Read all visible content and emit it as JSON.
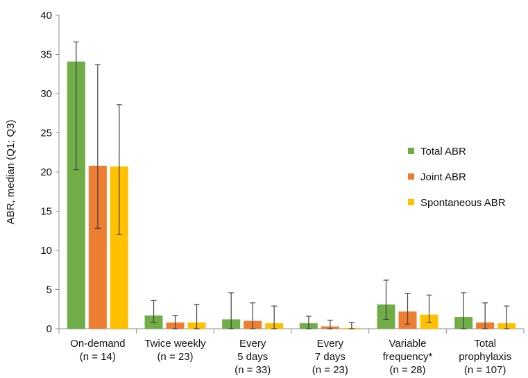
{
  "chart_data": {
    "type": "bar",
    "ylabel": "ABR, median (Q1; Q3)",
    "ylim": [
      0,
      40
    ],
    "yticks": [
      0,
      5,
      10,
      15,
      20,
      25,
      30,
      35,
      40
    ],
    "categories": [
      [
        "On-demand",
        "(n = 14)"
      ],
      [
        "Twice weekly",
        "(n = 23)"
      ],
      [
        "Every",
        "5 days",
        "(n = 33)"
      ],
      [
        "Every",
        "7 days",
        "(n = 23)"
      ],
      [
        "Variable",
        "frequency*",
        "(n = 28)"
      ],
      [
        "Total",
        "prophylaxis",
        "(n = 107)"
      ]
    ],
    "series": [
      {
        "name": "Total ABR",
        "color": "#70ad47",
        "values": [
          34.1,
          1.7,
          1.2,
          0.7,
          3.1,
          1.5
        ],
        "q1": [
          20.3,
          0.8,
          0.0,
          0.0,
          1.2,
          0.0
        ],
        "q3": [
          36.6,
          3.6,
          4.6,
          1.6,
          6.2,
          4.6
        ]
      },
      {
        "name": "Joint ABR",
        "color": "#ed7d31",
        "values": [
          20.8,
          0.8,
          1.0,
          0.3,
          2.2,
          0.8
        ],
        "q1": [
          12.8,
          0.0,
          0.0,
          0.0,
          0.6,
          0.0
        ],
        "q3": [
          33.7,
          1.7,
          3.3,
          1.1,
          4.5,
          3.3
        ]
      },
      {
        "name": "Spontaneous ABR",
        "color": "#ffc000",
        "values": [
          20.7,
          0.8,
          0.7,
          0.1,
          1.8,
          0.7
        ],
        "q1": [
          12.0,
          0.0,
          0.0,
          0.0,
          0.8,
          0.0
        ],
        "q3": [
          28.6,
          3.1,
          2.9,
          0.8,
          4.3,
          2.9
        ]
      }
    ],
    "legend_position": "right-middle",
    "grid": false
  }
}
